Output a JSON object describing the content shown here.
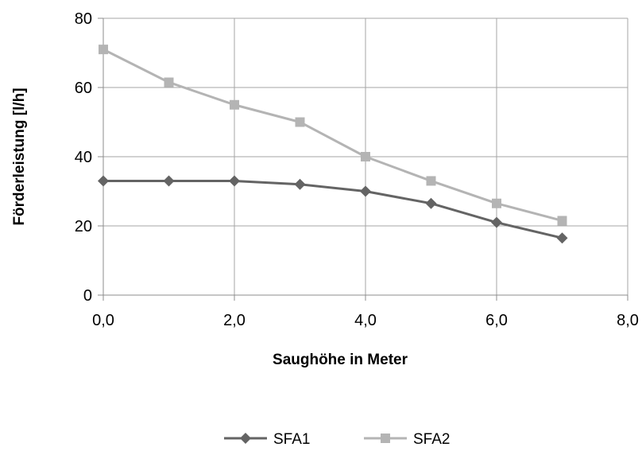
{
  "chart_data": {
    "type": "line",
    "title": "",
    "xlabel": "Saughöhe in Meter",
    "ylabel": "Förderleistung [l/h]",
    "xlim": [
      0,
      8
    ],
    "ylim": [
      0,
      80
    ],
    "x_ticks": [
      0,
      2,
      4,
      6,
      8
    ],
    "x_tick_labels": [
      "0,0",
      "2,0",
      "4,0",
      "6,0",
      "8,0"
    ],
    "y_ticks": [
      0,
      20,
      40,
      60,
      80
    ],
    "y_tick_labels": [
      "0",
      "20",
      "40",
      "60",
      "80"
    ],
    "grid": true,
    "legend_position": "bottom",
    "x": [
      0,
      1,
      2,
      3,
      4,
      5,
      6,
      7
    ],
    "series": [
      {
        "name": "SFA1",
        "marker": "diamond",
        "color": "#646464",
        "values": [
          33,
          33,
          33,
          32,
          30,
          26.5,
          21,
          16.5
        ]
      },
      {
        "name": "SFA2",
        "marker": "square",
        "color": "#b4b4b4",
        "values": [
          71,
          61.5,
          55,
          50,
          40,
          33,
          26.5,
          21.5
        ]
      }
    ]
  }
}
